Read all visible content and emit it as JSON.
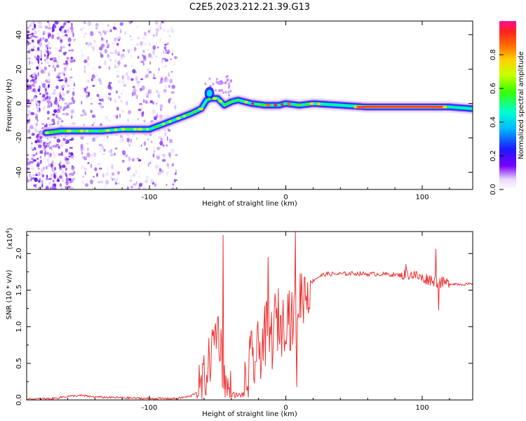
{
  "title": "C2E5.2023.212.21.39.G13",
  "chart_data": [
    {
      "type": "heatmap",
      "xlabel": "Height of straight line (km)",
      "ylabel": "Frequency (Hz)",
      "xlim": [
        -190,
        137
      ],
      "ylim": [
        -50,
        48
      ],
      "xticks": [
        -100,
        0,
        100
      ],
      "yticks": [
        -40,
        -20,
        0,
        20,
        40
      ],
      "ridge": {
        "x": [
          -175,
          -165,
          -150,
          -135,
          -120,
          -110,
          -100,
          -90,
          -80,
          -70,
          -62,
          -58,
          -55,
          -50,
          -45,
          -40,
          -35,
          -25,
          -15,
          -5,
          0,
          10,
          20,
          40,
          60,
          80,
          100,
          120,
          137
        ],
        "freq": [
          -17,
          -16,
          -16,
          -16,
          -15,
          -15,
          -15,
          -12,
          -9,
          -6,
          -3,
          2,
          3,
          3,
          -1,
          1,
          2,
          0,
          -1,
          -1,
          0,
          -1,
          0,
          -1,
          -2,
          -2,
          -2,
          -2,
          -3
        ]
      },
      "colorbar": {
        "label": "Normalized spectral amplitude",
        "ticks": [
          0.0,
          0.2,
          0.4,
          0.6,
          0.8
        ],
        "range": [
          0,
          1
        ]
      }
    },
    {
      "type": "line",
      "xlabel": "Height of straight line (km)",
      "ylabel": "SNR (10 * v/v)",
      "yscale_label": "(x10^4)",
      "xlim": [
        -190,
        137
      ],
      "ylim": [
        0,
        2.3
      ],
      "xticks": [
        -100,
        0,
        100
      ],
      "yticks": [
        0.0,
        0.5,
        1.0,
        1.5,
        2.0
      ],
      "series": [
        {
          "color": "#ee3333",
          "x": [
            -190,
            -170,
            -160,
            -150,
            -140,
            -120,
            -100,
            -80,
            -70,
            -62,
            -58,
            -55,
            -52,
            -50,
            -48,
            -46,
            -44,
            -40,
            -35,
            -30,
            -28,
            -26,
            -22,
            -18,
            -14,
            -10,
            -8,
            -5,
            -2,
            0,
            2,
            4,
            6,
            8,
            10,
            12,
            14,
            18,
            22,
            26,
            30,
            40,
            50,
            60,
            70,
            80,
            86,
            90,
            95,
            100,
            105,
            110,
            115,
            120,
            130,
            137
          ],
          "y": [
            0.01,
            0.02,
            0.05,
            0.06,
            0.04,
            0.03,
            0.02,
            0.02,
            0.05,
            0.15,
            0.4,
            0.6,
            0.9,
            1.0,
            0.8,
            0.4,
            0.15,
            0.08,
            0.06,
            0.08,
            0.3,
            0.5,
            0.55,
            0.75,
            0.9,
            0.85,
            1.05,
            1.1,
            1.0,
            1.2,
            1.25,
            1.0,
            1.15,
            1.3,
            1.4,
            1.45,
            1.5,
            1.6,
            1.66,
            1.7,
            1.72,
            1.72,
            1.73,
            1.72,
            1.72,
            1.71,
            1.7,
            1.72,
            1.7,
            1.66,
            1.65,
            1.62,
            1.6,
            1.59,
            1.58,
            1.58
          ]
        }
      ],
      "spikes": [
        {
          "x": -46,
          "y": 2.25
        },
        {
          "x": -13,
          "y": 1.95
        },
        {
          "x": 7,
          "y": 2.3
        },
        {
          "x": 8,
          "y": 0.18
        },
        {
          "x": 88,
          "y": 1.85
        },
        {
          "x": 110,
          "y": 2.06
        },
        {
          "x": 112,
          "y": 1.23
        }
      ]
    }
  ]
}
